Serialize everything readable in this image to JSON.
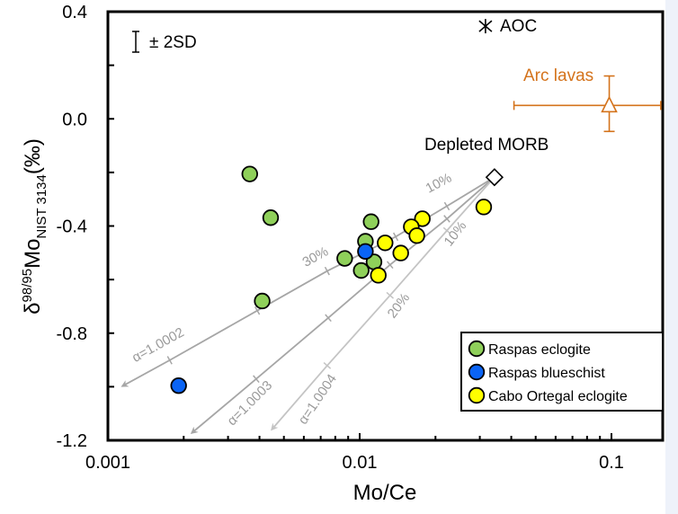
{
  "chart_data": {
    "type": "scatter",
    "title": "",
    "xlabel": "Mo/Ce",
    "ylabel": {
      "base": "δ",
      "sup": "98/95",
      "main": "Mo",
      "sub": "NIST 3134",
      "unit": "(‰)"
    },
    "xscale": "log",
    "xlim": [
      0.001,
      0.16
    ],
    "ylim": [
      -1.2,
      0.4
    ],
    "x_ticks": [
      {
        "value": 0.001,
        "label": "0.001"
      },
      {
        "value": 0.01,
        "label": "0.01"
      },
      {
        "value": 0.1,
        "label": "0.1"
      }
    ],
    "x_minor_ticks": [
      0.002,
      0.003,
      0.004,
      0.005,
      0.006,
      0.007,
      0.008,
      0.009,
      0.02,
      0.03,
      0.04,
      0.05,
      0.06,
      0.07,
      0.08,
      0.09
    ],
    "y_ticks": [
      {
        "value": 0.4,
        "label": "0.4"
      },
      {
        "value": 0.0,
        "label": "0.0"
      },
      {
        "value": -0.4,
        "label": "-0.4"
      },
      {
        "value": -0.8,
        "label": "-0.8"
      },
      {
        "value": -1.2,
        "label": "-1.2"
      }
    ],
    "y_minor_ticks": [
      0.2,
      -0.2,
      -0.6,
      -1.0
    ],
    "grid": false,
    "legend_position": "bottom-right",
    "series": [
      {
        "name": "Raspas eclogite",
        "color": "#8fd05a",
        "marker": "circle",
        "points": [
          [
            0.00366,
            -0.206
          ],
          [
            0.00443,
            -0.369
          ],
          [
            0.0111,
            -0.384
          ],
          [
            0.01054,
            -0.457
          ],
          [
            0.00872,
            -0.521
          ],
          [
            0.0114,
            -0.534
          ],
          [
            0.01014,
            -0.566
          ],
          [
            0.0041,
            -0.68
          ]
        ]
      },
      {
        "name": "Raspas blueschist",
        "color": "#0a64f5",
        "marker": "circle",
        "points": [
          [
            0.01054,
            -0.495
          ],
          [
            0.00191,
            -0.996
          ]
        ]
      },
      {
        "name": "Cabo Ortegal eclogite",
        "color": "#ffff00",
        "marker": "circle",
        "points": [
          [
            0.01774,
            -0.373
          ],
          [
            0.01603,
            -0.403
          ],
          [
            0.01687,
            -0.436
          ],
          [
            0.01262,
            -0.463
          ],
          [
            0.01456,
            -0.501
          ],
          [
            0.01186,
            -0.584
          ],
          [
            0.0311,
            -0.329
          ]
        ]
      }
    ],
    "reference_points": {
      "depleted_morb": {
        "label": "Depleted MORB",
        "x": 0.0343,
        "y": -0.218,
        "marker": "diamond"
      },
      "aoc": {
        "label": "AOC",
        "x": 0.0316,
        "y": 0.346,
        "marker": "asterisk"
      },
      "arc_lavas": {
        "label": "Arc lavas",
        "x": 0.098,
        "y": 0.05,
        "marker": "triangle",
        "color": "#d4731c",
        "x_err": [
          0.041,
          0.157
        ],
        "y_err": [
          -0.047,
          0.16
        ]
      }
    },
    "error_bar_legend": {
      "label": "± 2SD"
    },
    "mixing_curves": [
      {
        "alpha_label": "α=1.0002",
        "color": "#a6a6a6",
        "points": [
          [
            0.0343,
            -0.218
          ],
          [
            0.0222,
            -0.326
          ],
          [
            0.0139,
            -0.44
          ],
          [
            0.00743,
            -0.568
          ],
          [
            0.00392,
            -0.716
          ],
          [
            0.00176,
            -0.901
          ],
          [
            0.00114,
            -0.998
          ]
        ],
        "tick_points": [
          [
            0.0222,
            -0.326
          ],
          [
            0.0139,
            -0.44
          ],
          [
            0.00743,
            -0.568
          ],
          [
            0.00392,
            -0.716
          ],
          [
            0.00176,
            -0.901
          ]
        ],
        "annotations": [
          {
            "text": "10%",
            "near": [
              0.0222,
              -0.326
            ]
          },
          {
            "text": "30%",
            "near": [
              0.00743,
              -0.568
            ]
          }
        ]
      },
      {
        "alpha_label": "α=1.0003",
        "color": "#a6a6a6",
        "points": [
          [
            0.0343,
            -0.218
          ],
          [
            0.0222,
            -0.373
          ],
          [
            0.0132,
            -0.545
          ],
          [
            0.0075,
            -0.743
          ],
          [
            0.00388,
            -0.971
          ],
          [
            0.00215,
            -1.173
          ]
        ],
        "tick_points": [
          [
            0.0222,
            -0.373
          ],
          [
            0.0132,
            -0.545
          ],
          [
            0.0075,
            -0.743
          ],
          [
            0.00388,
            -0.971
          ]
        ],
        "annotations": []
      },
      {
        "alpha_label": "α=1.0004",
        "color": "#c4c4c4",
        "points": [
          [
            0.0343,
            -0.218
          ],
          [
            0.0222,
            -0.417
          ],
          [
            0.0132,
            -0.659
          ],
          [
            0.00743,
            -0.921
          ],
          [
            0.00447,
            -1.16
          ]
        ],
        "tick_points": [
          [
            0.0222,
            -0.417
          ],
          [
            0.0132,
            -0.659
          ],
          [
            0.00743,
            -0.921
          ]
        ],
        "annotations": [
          {
            "text": "10%",
            "near": [
              0.0222,
              -0.417
            ]
          },
          {
            "text": "20%",
            "near": [
              0.0132,
              -0.659
            ]
          }
        ]
      }
    ]
  }
}
